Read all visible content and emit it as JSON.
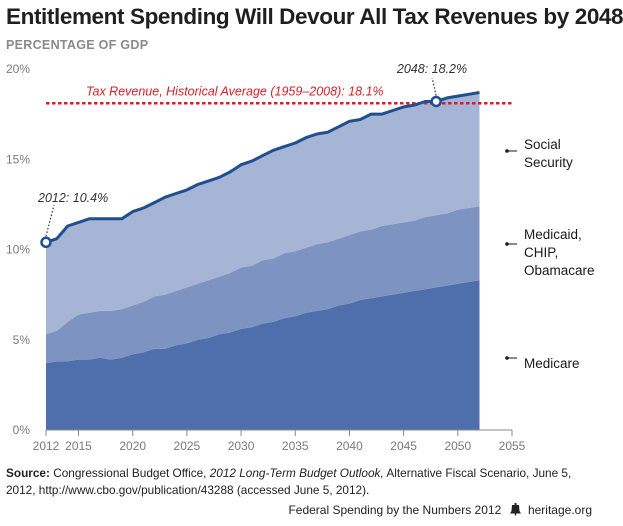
{
  "header": {
    "title": "Entitlement Spending Will Devour All Tax Revenues by 2048",
    "subtitle": "PERCENTAGE OF GDP"
  },
  "source": {
    "label": "Source:",
    "text1": " Congressional Budget Office, ",
    "italic": "2012 Long-Term Budget Outlook,",
    "text2": " Alternative Fiscal Scenario, June 5, 2012, http://www.cbo.gov/publication/43288 (accessed June 5, 2012)."
  },
  "footer": {
    "publication": "Federal Spending by the Numbers 2012",
    "site": "heritage.org"
  },
  "colors": {
    "medicare": "#4e6fab",
    "medicaid": "#7d94c2",
    "social_security": "#a6b4d6",
    "total_line": "#1f4f8f",
    "revenue_line": "#d4202a"
  },
  "chart_data": {
    "type": "area",
    "stacked": true,
    "x": [
      2012,
      2013,
      2014,
      2015,
      2016,
      2017,
      2018,
      2019,
      2020,
      2021,
      2022,
      2023,
      2024,
      2025,
      2026,
      2027,
      2028,
      2029,
      2030,
      2031,
      2032,
      2033,
      2034,
      2035,
      2036,
      2037,
      2038,
      2039,
      2040,
      2041,
      2042,
      2043,
      2044,
      2045,
      2046,
      2047,
      2048,
      2049,
      2050,
      2051,
      2052
    ],
    "series": [
      {
        "name": "Medicare",
        "values": [
          3.7,
          3.8,
          3.8,
          3.9,
          3.9,
          4.0,
          3.9,
          4.0,
          4.2,
          4.3,
          4.5,
          4.5,
          4.7,
          4.8,
          5.0,
          5.1,
          5.3,
          5.4,
          5.6,
          5.7,
          5.9,
          6.0,
          6.2,
          6.3,
          6.5,
          6.6,
          6.7,
          6.9,
          7.0,
          7.2,
          7.3,
          7.4,
          7.5,
          7.6,
          7.7,
          7.8,
          7.9,
          8.0,
          8.1,
          8.2,
          8.3
        ]
      },
      {
        "name": "Medicaid, CHIP, Obamacare",
        "values": [
          1.6,
          1.7,
          2.2,
          2.5,
          2.6,
          2.6,
          2.7,
          2.7,
          2.7,
          2.8,
          2.9,
          3.0,
          3.0,
          3.1,
          3.1,
          3.2,
          3.2,
          3.3,
          3.4,
          3.4,
          3.5,
          3.5,
          3.6,
          3.6,
          3.6,
          3.7,
          3.7,
          3.7,
          3.8,
          3.8,
          3.8,
          3.9,
          3.9,
          3.9,
          3.9,
          4.0,
          4.0,
          4.0,
          4.1,
          4.1,
          4.1
        ]
      },
      {
        "name": "Social Security",
        "values": [
          5.1,
          5.1,
          5.3,
          5.1,
          5.2,
          5.1,
          5.1,
          5.0,
          5.2,
          5.2,
          5.2,
          5.4,
          5.4,
          5.4,
          5.5,
          5.5,
          5.5,
          5.6,
          5.7,
          5.8,
          5.8,
          6.0,
          5.9,
          6.0,
          6.1,
          6.1,
          6.1,
          6.2,
          6.3,
          6.2,
          6.4,
          6.2,
          6.3,
          6.4,
          6.4,
          6.4,
          6.3,
          6.4,
          6.3,
          6.3,
          6.3
        ]
      }
    ],
    "total": [
      10.4,
      10.6,
      11.3,
      11.5,
      11.7,
      11.7,
      11.7,
      11.7,
      12.1,
      12.3,
      12.6,
      12.9,
      13.1,
      13.3,
      13.6,
      13.8,
      14.0,
      14.3,
      14.7,
      14.9,
      15.2,
      15.5,
      15.7,
      15.9,
      16.2,
      16.4,
      16.5,
      16.8,
      17.1,
      17.2,
      17.5,
      17.5,
      17.7,
      17.9,
      18.0,
      18.2,
      18.2,
      18.4,
      18.5,
      18.6,
      18.7
    ],
    "series_labels": [
      {
        "lines": [
          "Social",
          "Security"
        ]
      },
      {
        "lines": [
          "Medicaid,",
          "CHIP,",
          "Obamacare"
        ]
      },
      {
        "lines": [
          "Medicare"
        ]
      }
    ],
    "reference_line": {
      "value": 18.1,
      "label": "Tax Revenue, Historical Average (1959–2008): 18.1%"
    },
    "annotations": [
      {
        "x": 2012,
        "y": 10.4,
        "text": "2012: 10.4%"
      },
      {
        "x": 2048,
        "y": 18.2,
        "text": "2048: 18.2%"
      }
    ],
    "xlim": [
      2012,
      2055
    ],
    "ylim": [
      0,
      20
    ],
    "xticks": [
      2012,
      2015,
      2020,
      2025,
      2030,
      2035,
      2040,
      2045,
      2050,
      2055
    ],
    "yticks": [
      0,
      5,
      10,
      15,
      20
    ],
    "ytick_labels": [
      "0%",
      "5%",
      "10%",
      "15%",
      "20%"
    ],
    "grid": false
  }
}
